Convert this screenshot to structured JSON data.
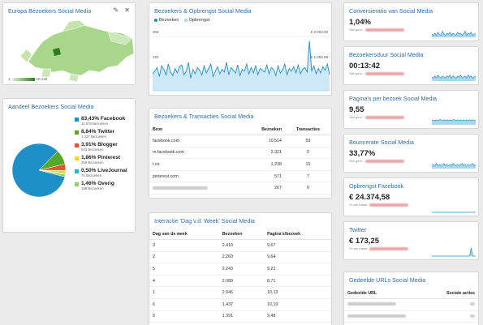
{
  "colors": {
    "accent": "#2a6db5",
    "primary_series": "#1f8fc8",
    "secondary_series": "#9fd8f0",
    "map_fill": "#a8d68a",
    "map_dark": "#2f7a1c"
  },
  "europe": {
    "title": "Europa Bezoekers Social Media",
    "tools": {
      "edit": "✎",
      "close": "✕"
    },
    "scale_min": "1",
    "scale_max": "10.136"
  },
  "share": {
    "title": "Aandeel Bezoekers Social Media",
    "items": [
      {
        "pct": "83,43% Facebook",
        "sub": "11.578 Bezoeken",
        "color": "#1f8fc8",
        "value": 83.43
      },
      {
        "pct": "8,84% Twitter",
        "sub": "1.227 Bezoeken",
        "color": "#56a82b",
        "value": 8.84
      },
      {
        "pct": "3,91% Blogger",
        "sub": "543 Bezoeken",
        "color": "#e8542a",
        "value": 3.91
      },
      {
        "pct": "1,86% Pinterest",
        "sub": "259 Bezoeken",
        "color": "#f4d22b",
        "value": 1.86
      },
      {
        "pct": "0,50% LiveJournal",
        "sub": "70 Bezoeken",
        "color": "#2ab3d4",
        "value": 0.5
      },
      {
        "pct": "1,46% Overig",
        "sub": "198 Bezoeken",
        "color": "#8ed36a",
        "value": 1.46
      }
    ]
  },
  "revenue": {
    "title": "Bezoekers & Opbrengst Social Media",
    "legend_a": "Bezoeken",
    "legend_b": "Opbrengst",
    "y_top_left": "300",
    "y_mid_left": "150",
    "y_top_right": "€ 2.000,00",
    "y_mid_right": "€ 1.000,00"
  },
  "chart_data": {
    "type": "line",
    "title": "Bezoekers & Opbrengst Social Media",
    "series": [
      {
        "name": "Bezoeken",
        "values": [
          95,
          110,
          130,
          80,
          140,
          120,
          90,
          150,
          105,
          85,
          125,
          100,
          135,
          145,
          90,
          110,
          160,
          70,
          120,
          95,
          130,
          115,
          88,
          140,
          100,
          125,
          150,
          80,
          110,
          135,
          95,
          120,
          105,
          160,
          90,
          130,
          115,
          100,
          145,
          85,
          120,
          110,
          150,
          95,
          130,
          100,
          140,
          90,
          125,
          115,
          105,
          145,
          95,
          130,
          120,
          85,
          140,
          100,
          115,
          150,
          90,
          125,
          110,
          135,
          100,
          145,
          95,
          120,
          130,
          105,
          280,
          110,
          140,
          95,
          125,
          100,
          135,
          115,
          150,
          90
        ]
      },
      {
        "name": "Opbrengst",
        "values": [
          0,
          0,
          0,
          0,
          0,
          0,
          0,
          0,
          0,
          0,
          0,
          0,
          0,
          0,
          0,
          0,
          0,
          0,
          0,
          0,
          0,
          0,
          0,
          0,
          0,
          0,
          0,
          0,
          0,
          0,
          0,
          0,
          0,
          0,
          0,
          0,
          0,
          0,
          0,
          0,
          0,
          0,
          0,
          0,
          0,
          0,
          0,
          0,
          0,
          0,
          0,
          0,
          0,
          0,
          0,
          0,
          0,
          0,
          0,
          0,
          0,
          0,
          0,
          0,
          0,
          0,
          0,
          0,
          0,
          0,
          0,
          0,
          0,
          0,
          0,
          0,
          0,
          0,
          0,
          0
        ]
      }
    ],
    "ylim": [
      0,
      300
    ]
  },
  "transactions": {
    "title": "Bezoekers & Transacties Social Media",
    "headers": [
      "Bron",
      "Bezoeken",
      "Transacties"
    ],
    "rows": [
      [
        "facebook.com",
        "10.514",
        "59"
      ],
      [
        "m.facebook.com",
        "2.321",
        "0"
      ],
      [
        "t.co",
        "1.238",
        "15"
      ],
      [
        "pinterest.com",
        "571",
        "7"
      ],
      [
        "",
        "267",
        "0"
      ]
    ]
  },
  "weekday": {
    "title": "Interactie 'Dag v.d. Week' Social Media",
    "headers": [
      "Dag van de week",
      "Bezoeken",
      "Pagina's/bezoek"
    ],
    "rows": [
      [
        "3",
        "2.410",
        "9,67"
      ],
      [
        "2",
        "2.260",
        "9,64"
      ],
      [
        "5",
        "2.243",
        "9,21"
      ],
      [
        "4",
        "2.089",
        "8,71"
      ],
      [
        "1",
        "2.046",
        "10,13"
      ],
      [
        "6",
        "1.437",
        "10,19"
      ],
      [
        "0",
        "1.391",
        "9,48"
      ]
    ]
  },
  "kpis": [
    {
      "title": "Conversieratio van Social Media",
      "value": "1,04%",
      "sub": "Site gem.:",
      "spark": [
        3,
        2,
        4,
        2,
        5,
        3,
        2,
        6,
        3,
        2,
        4,
        3,
        5,
        2,
        4,
        3,
        2,
        5,
        3,
        4,
        2,
        3,
        6,
        2,
        4,
        3,
        5,
        2,
        3,
        4
      ]
    },
    {
      "title": "Bezoekersduur Social Media",
      "value": "00:13:42",
      "sub": "Site gem.:",
      "spark": [
        4,
        3,
        5,
        3,
        6,
        4,
        3,
        5,
        4,
        3,
        5,
        4,
        6,
        3,
        5,
        4,
        3,
        5,
        4,
        6,
        3,
        4,
        5,
        3,
        6,
        4,
        5,
        3,
        4,
        5
      ]
    },
    {
      "title": "Pagina's per bezoek Social Media",
      "value": "9,55",
      "sub": "Site gem.:",
      "spark": [
        4,
        5,
        4,
        5,
        4,
        5,
        5,
        4,
        5,
        4,
        5,
        4,
        5,
        4,
        5,
        5,
        4,
        5,
        4,
        5,
        4,
        5,
        4,
        5,
        4,
        5,
        4,
        5,
        4,
        5
      ]
    },
    {
      "title": "Bouncerate Social Media",
      "value": "33,77%",
      "sub": "Site gem.:",
      "spark": [
        3,
        4,
        3,
        5,
        3,
        4,
        3,
        4,
        5,
        3,
        4,
        3,
        4,
        3,
        5,
        4,
        3,
        4,
        3,
        4,
        5,
        3,
        4,
        3,
        4,
        3,
        4,
        5,
        3,
        4
      ]
    },
    {
      "title": "Opbrengst Facebook",
      "value": "€ 24.374,58",
      "sub": "% van totaal:",
      "spark": [
        0,
        0,
        0,
        0,
        0,
        0,
        0,
        0,
        0,
        0,
        0,
        0,
        0,
        0,
        0,
        0,
        0,
        0,
        0,
        0,
        0,
        0,
        0,
        0,
        0,
        0,
        0,
        0,
        0,
        0
      ]
    },
    {
      "title": "Twitter",
      "value": "€ 173,25",
      "sub": "% van totaal:",
      "spark": [
        0,
        0,
        0,
        0,
        0,
        0,
        0,
        0,
        0,
        0,
        0,
        0,
        0,
        0,
        0,
        0,
        0,
        0,
        0,
        0,
        0,
        0,
        0,
        0,
        0,
        0,
        8,
        0,
        0,
        0
      ]
    }
  ],
  "shared": {
    "title": "Gedeelde URLs Social Media",
    "headers": [
      "Gedeelde URL",
      "Sociale acties"
    ]
  }
}
